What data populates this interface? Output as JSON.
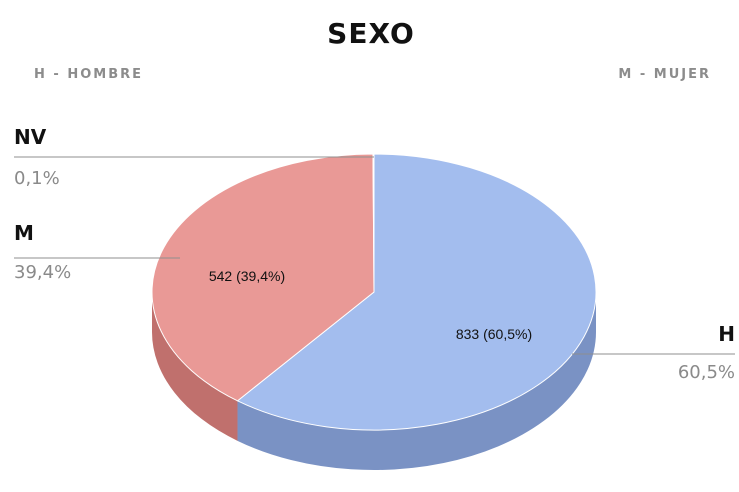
{
  "chart_data": {
    "type": "pie",
    "title": "SEXO",
    "legend": [
      {
        "text": "H - HOMBRE",
        "placement": "top-left"
      },
      {
        "text": "M - MUJER",
        "placement": "top-right"
      }
    ],
    "slices": [
      {
        "key": "h",
        "label": "H",
        "value": 833,
        "percent": 60.5,
        "percent_text": "60,5%",
        "data_label": "833 (60,5%)",
        "color": "#a3bdee",
        "side_color": "#7a92c4"
      },
      {
        "key": "m",
        "label": "M",
        "value": 542,
        "percent": 39.4,
        "percent_text": "39,4%",
        "data_label": "542 (39,4%)",
        "color": "#e99996",
        "side_color": "#c0706d"
      },
      {
        "key": "nv",
        "label": "NV",
        "value": 1,
        "percent": 0.1,
        "percent_text": "0,1%",
        "data_label": "",
        "color": "#f4f4f4",
        "side_color": "#d8d8d8"
      }
    ]
  }
}
